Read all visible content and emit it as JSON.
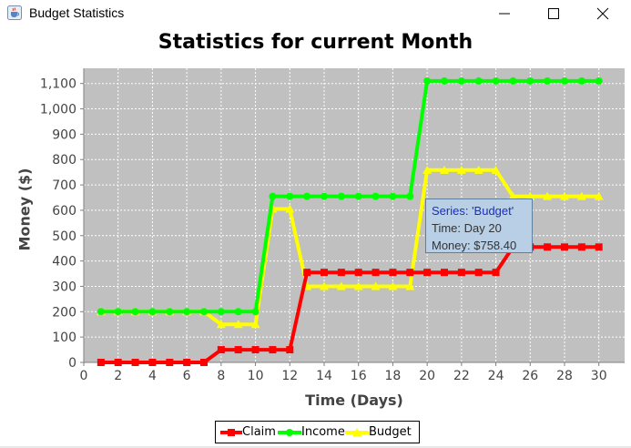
{
  "window": {
    "title": "Budget Statistics",
    "icon": "java-cup-icon",
    "controls": [
      "minimize-icon",
      "maximize-icon",
      "close-icon"
    ]
  },
  "colors": {
    "plot_background": "#c0c0c0",
    "claim": "#ff0000",
    "income": "#00ff00",
    "budget": "#ffff00",
    "tooltip_background": "#b8cfe5",
    "tooltip_series_text": "#1a2fbf"
  },
  "tooltip": {
    "series": "Series: 'Budget'",
    "time": "Time: Day 20",
    "money": "Money: $758.40"
  },
  "chart_data": {
    "type": "line",
    "title": "Statistics for current Month",
    "xlabel": "Time (Days)",
    "ylabel": "Money ($)",
    "xlim": [
      0,
      31.5
    ],
    "ylim": [
      0,
      1160
    ],
    "x_ticks": [
      0,
      2,
      4,
      6,
      8,
      10,
      12,
      14,
      16,
      18,
      20,
      22,
      24,
      26,
      28,
      30
    ],
    "y_ticks": [
      0,
      100,
      200,
      300,
      400,
      500,
      600,
      700,
      800,
      900,
      1000,
      1100
    ],
    "y_tick_labels": [
      "0",
      "100",
      "200",
      "300",
      "400",
      "500",
      "600",
      "700",
      "800",
      "900",
      "1,000",
      "1,100"
    ],
    "grid": true,
    "legend_position": "bottom",
    "x": [
      1,
      2,
      3,
      4,
      5,
      6,
      7,
      8,
      9,
      10,
      11,
      12,
      13,
      14,
      15,
      16,
      17,
      18,
      19,
      20,
      21,
      22,
      23,
      24,
      25,
      26,
      27,
      28,
      29,
      30
    ],
    "series": [
      {
        "name": "Claim",
        "marker": "square",
        "values": [
          0,
          0,
          0,
          0,
          0,
          0,
          0,
          50,
          50,
          50,
          50,
          50,
          355,
          355,
          355,
          355,
          355,
          355,
          355,
          355,
          355,
          355,
          355,
          355,
          455,
          455,
          455,
          455,
          455,
          455
        ]
      },
      {
        "name": "Income",
        "marker": "circle",
        "values": [
          200,
          200,
          200,
          200,
          200,
          200,
          200,
          200,
          200,
          200,
          655,
          655,
          655,
          655,
          655,
          655,
          655,
          655,
          655,
          1110,
          1110,
          1110,
          1110,
          1110,
          1110,
          1110,
          1110,
          1110,
          1110,
          1110
        ]
      },
      {
        "name": "Budget",
        "marker": "triangle",
        "values": [
          200,
          200,
          200,
          200,
          200,
          200,
          200,
          150,
          150,
          150,
          605,
          605,
          300,
          300,
          300,
          300,
          300,
          300,
          300,
          758.4,
          758.4,
          758.4,
          758.4,
          758.4,
          655,
          655,
          655,
          655,
          655,
          655
        ]
      }
    ]
  }
}
